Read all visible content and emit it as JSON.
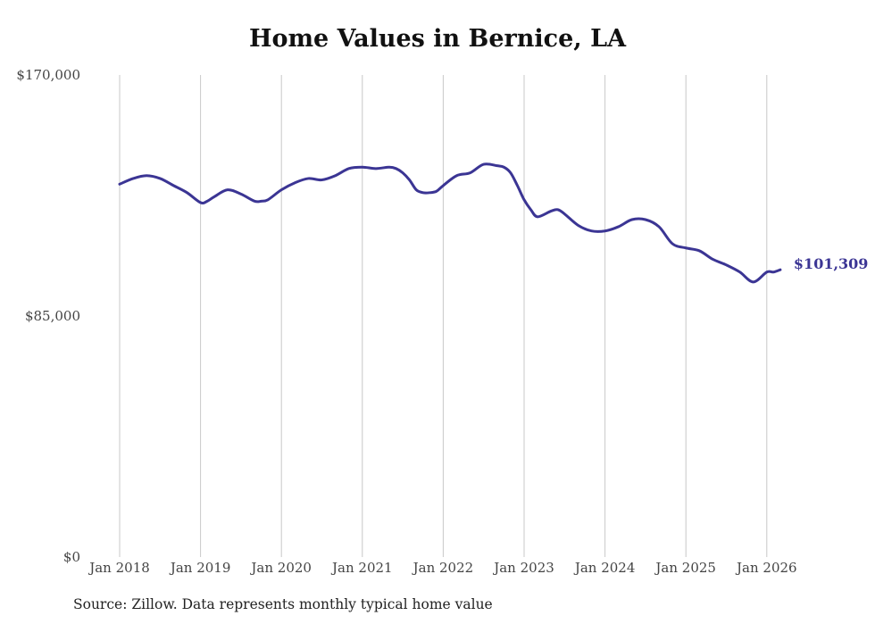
{
  "chart_data": {
    "type": "line",
    "title": "Home Values in Bernice, LA",
    "xlabel": "",
    "ylabel": "",
    "ylim": [
      0,
      170000
    ],
    "y_ticks": [
      {
        "value": 0,
        "label": "$0"
      },
      {
        "value": 85000,
        "label": "$85,000"
      },
      {
        "value": 170000,
        "label": "$170,000"
      }
    ],
    "x_ticks": [
      {
        "value": 2018,
        "label": "Jan 2018"
      },
      {
        "value": 2019,
        "label": "Jan 2019"
      },
      {
        "value": 2020,
        "label": "Jan 2020"
      },
      {
        "value": 2021,
        "label": "Jan 2021"
      },
      {
        "value": 2022,
        "label": "Jan 2022"
      },
      {
        "value": 2023,
        "label": "Jan 2023"
      },
      {
        "value": 2024,
        "label": "Jan 2024"
      },
      {
        "value": 2025,
        "label": "Jan 2025"
      },
      {
        "value": 2026,
        "label": "Jan 2026"
      }
    ],
    "xlim": [
      2018,
      2026.167
    ],
    "grid": "vertical",
    "series": [
      {
        "name": "Typical home value",
        "color": "#3b3594",
        "x": [
          2018.0,
          2018.167,
          2018.333,
          2018.5,
          2018.667,
          2018.833,
          2019.0,
          2019.083,
          2019.167,
          2019.333,
          2019.5,
          2019.667,
          2019.75,
          2019.833,
          2020.0,
          2020.167,
          2020.333,
          2020.5,
          2020.667,
          2020.833,
          2021.0,
          2021.167,
          2021.333,
          2021.417,
          2021.5,
          2021.583,
          2021.667,
          2021.75,
          2021.833,
          2021.917,
          2022.0,
          2022.167,
          2022.333,
          2022.5,
          2022.667,
          2022.75,
          2022.833,
          2022.917,
          2023.0,
          2023.083,
          2023.167,
          2023.333,
          2023.417,
          2023.5,
          2023.667,
          2023.833,
          2024.0,
          2024.167,
          2024.333,
          2024.5,
          2024.667,
          2024.833,
          2025.0,
          2025.167,
          2025.333,
          2025.5,
          2025.667,
          2025.833,
          2026.0,
          2026.083,
          2026.167
        ],
        "values": [
          131500,
          133500,
          134500,
          133500,
          131000,
          128500,
          125000,
          125500,
          127000,
          129500,
          128000,
          125500,
          125500,
          126000,
          129500,
          132000,
          133500,
          133000,
          134500,
          137000,
          137500,
          137000,
          137500,
          137000,
          135500,
          133000,
          129500,
          128500,
          128500,
          129000,
          131000,
          134500,
          135500,
          138500,
          138000,
          137500,
          135500,
          131000,
          126000,
          122500,
          120000,
          122000,
          122500,
          121000,
          117000,
          115000,
          115000,
          116500,
          119000,
          119000,
          116500,
          110500,
          109000,
          108000,
          105000,
          103000,
          100500,
          97000,
          100500,
          100500,
          101309
        ]
      }
    ],
    "end_label": "$101,309"
  },
  "source_note": "Source: Zillow. Data represents monthly typical home value"
}
